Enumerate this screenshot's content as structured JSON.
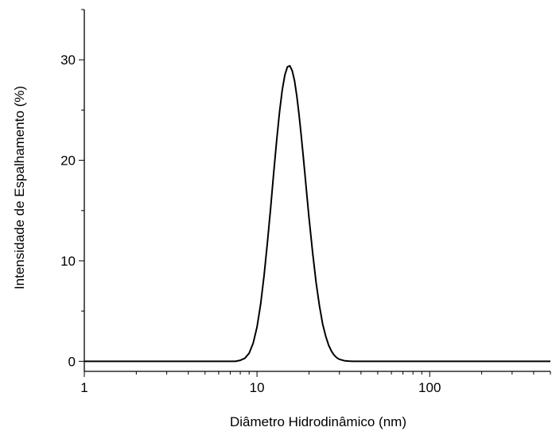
{
  "chart_data": {
    "type": "line",
    "title": "",
    "xlabel": "Diâmetro Hidrodinâmico (nm)",
    "ylabel": "Intensidade de Espalhamento (%)",
    "x_scale": "log",
    "xlim": [
      1,
      500
    ],
    "ylim": [
      -1,
      35
    ],
    "x_ticks": [
      {
        "value": 1,
        "label": "1"
      },
      {
        "value": 10,
        "label": "10"
      },
      {
        "value": 100,
        "label": "100"
      }
    ],
    "y_ticks": [
      {
        "value": 0,
        "label": "0"
      },
      {
        "value": 10,
        "label": "10"
      },
      {
        "value": 20,
        "label": "20"
      },
      {
        "value": 30,
        "label": "30"
      }
    ],
    "grid": false,
    "legend": "none",
    "line_color": "#000000",
    "series": [
      {
        "x": [
          1,
          7.5,
          8.0,
          8.5,
          9.0,
          9.5,
          10.0,
          10.5,
          11.0,
          11.5,
          12.0,
          12.5,
          13.0,
          13.5,
          14.0,
          14.5,
          15.0,
          15.5,
          16.0,
          16.5,
          17.0,
          17.5,
          18.0,
          18.5,
          19.0,
          19.5,
          20.0,
          21.0,
          22.0,
          23.0,
          24.0,
          25.0,
          26.0,
          27.0,
          28.0,
          29.0,
          30.0,
          32.0,
          34.0,
          36.0,
          38.0,
          500
        ],
        "y": [
          0,
          0,
          0.1,
          0.3,
          0.8,
          1.8,
          3.4,
          5.7,
          8.6,
          11.9,
          15.3,
          18.8,
          22.0,
          24.8,
          27.0,
          28.5,
          29.3,
          29.4,
          28.9,
          27.9,
          26.4,
          24.6,
          22.6,
          20.5,
          18.4,
          16.3,
          14.3,
          10.8,
          7.8,
          5.5,
          3.7,
          2.5,
          1.6,
          1.0,
          0.6,
          0.35,
          0.2,
          0.06,
          0.02,
          0,
          0,
          0
        ]
      }
    ]
  }
}
